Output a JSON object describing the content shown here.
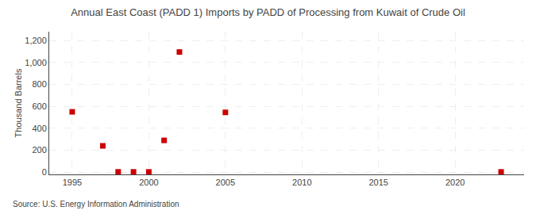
{
  "chart_data": {
    "type": "scatter",
    "title": "Annual East Coast (PADD 1) Imports by PADD of Processing from Kuwait of Crude Oil",
    "y_label": "Thousand Barrels",
    "source": "Source: U.S. Energy Information Administration",
    "x": [
      1995,
      1997,
      1998,
      1999,
      2000,
      2001,
      2002,
      2005,
      2023
    ],
    "values": [
      550,
      240,
      3,
      3,
      3,
      290,
      1095,
      545,
      3
    ],
    "color": "#cc0000",
    "marker": "square",
    "xlim": [
      1993.5,
      2024.5
    ],
    "ylim": [
      -20,
      1280
    ],
    "xticks": [
      1995,
      2000,
      2005,
      2010,
      2015,
      2020
    ],
    "yticks": [
      0,
      200,
      400,
      600,
      800,
      {
        "value": 1000,
        "label": "1,000"
      },
      {
        "value": 1200,
        "label": "1,200"
      }
    ],
    "grid": true
  }
}
